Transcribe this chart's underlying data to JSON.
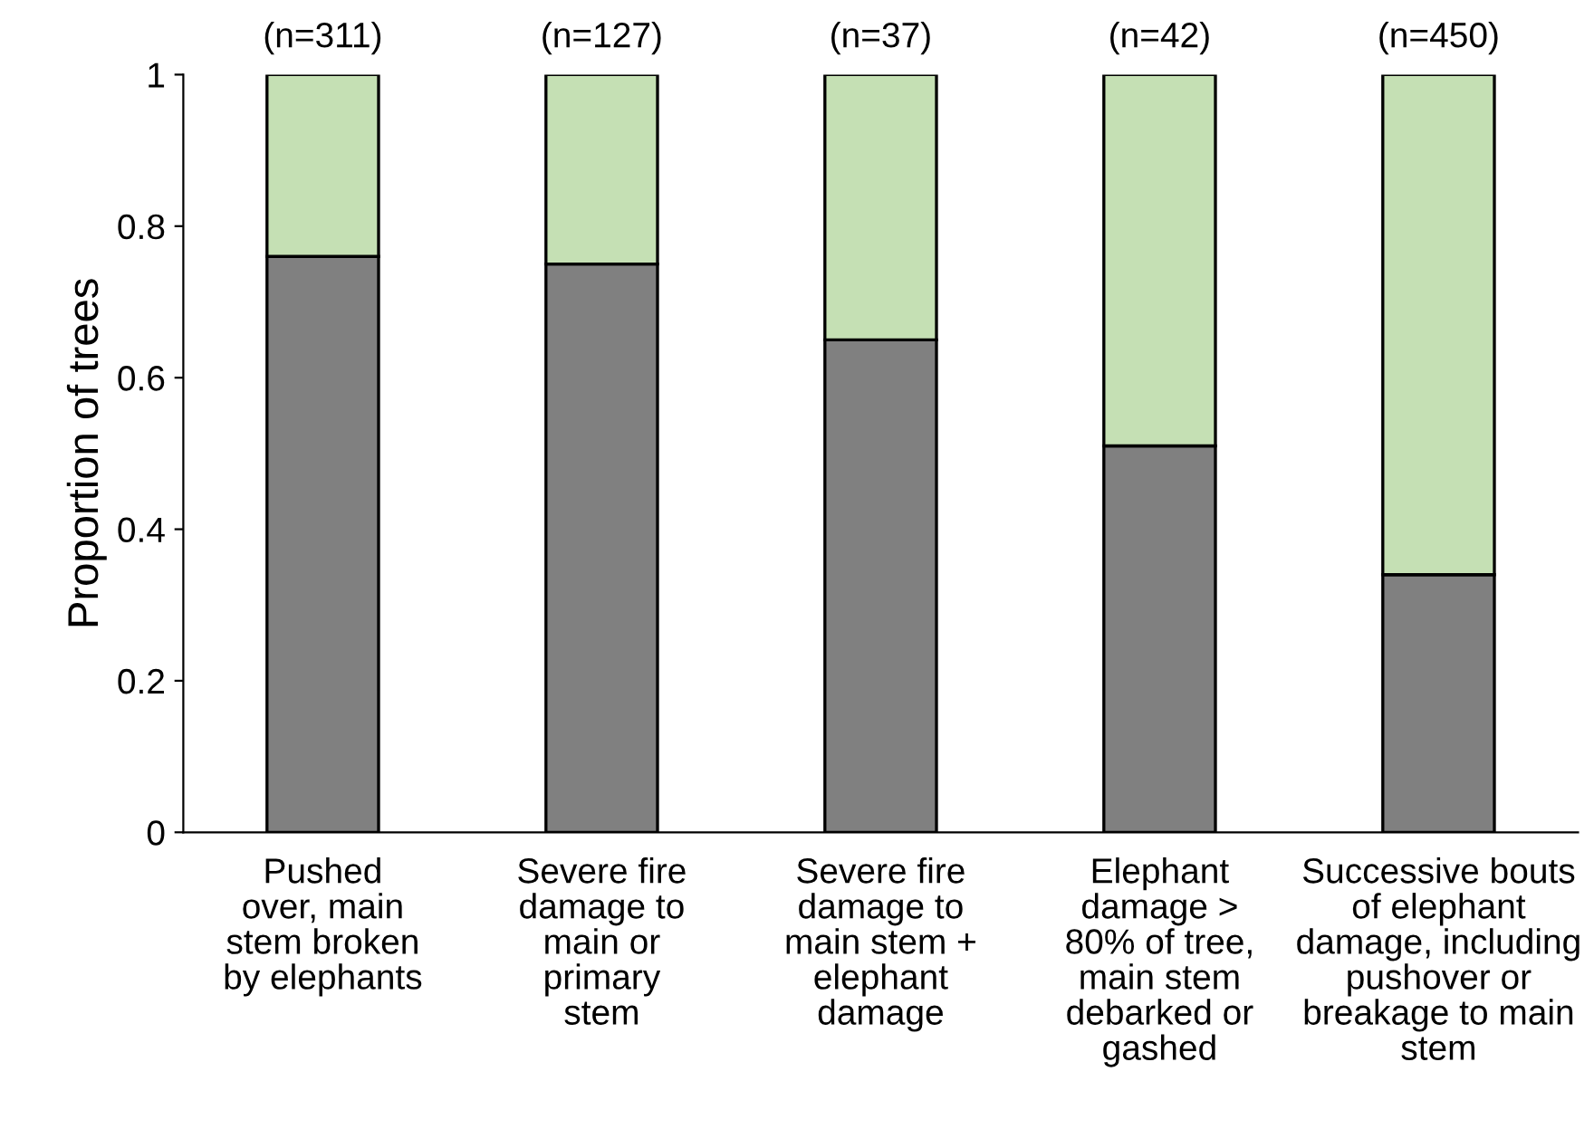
{
  "chart_data": {
    "type": "bar",
    "stacked": true,
    "ylabel": "Proportion of trees",
    "categories": [
      "Pushed\nover, main\nstem broken\nby elephants",
      "Severe fire\ndamage to\nmain or\nprimary\nstem",
      "Severe fire\ndamage to\nmain stem +\nelephant\ndamage",
      "Elephant\ndamage >\n80% of tree,\nmain stem\ndebarked or\ngashed",
      "Successive bouts\nof elephant\ndamage, including\npushover or\nbreakage to main\nstem"
    ],
    "series": [
      {
        "color": "#808080",
        "values": [
          0.76,
          0.75,
          0.65,
          0.51,
          0.34
        ]
      },
      {
        "color": "#c5e0b4",
        "values": [
          0.24,
          0.25,
          0.35,
          0.49,
          0.66
        ]
      }
    ],
    "ylim": [
      0,
      1
    ],
    "yticks": [
      0,
      {
        "value": 0.2,
        "label": "0.2"
      },
      {
        "value": 0.4,
        "label": "0.4"
      },
      {
        "value": 0.6,
        "label": "0.6"
      },
      {
        "value": 0.8,
        "label": "0.8"
      },
      1
    ],
    "grid": false,
    "legend": false,
    "annotations": [
      {
        "text": "(n=311)",
        "x": "Pushed\nover, main\nstem broken\nby elephants",
        "y": 1
      },
      {
        "text": "(n=127)",
        "x": "Severe fire\ndamage to\nmain or\nprimary\nstem",
        "y": 1
      },
      {
        "text": "(n=37)",
        "x": "Severe fire\ndamage to\nmain stem +\nelephant\ndamage",
        "y": 1
      },
      {
        "text": "(n=42)",
        "x": "Elephant\ndamage >\n80% of tree,\nmain stem\ndebarked or\ngashed",
        "y": 1
      },
      {
        "text": "(n=450)",
        "x": "Successive bouts\nof elephant\ndamage, including\npushover or\nbreakage to main\nstem",
        "y": 1
      }
    ]
  }
}
